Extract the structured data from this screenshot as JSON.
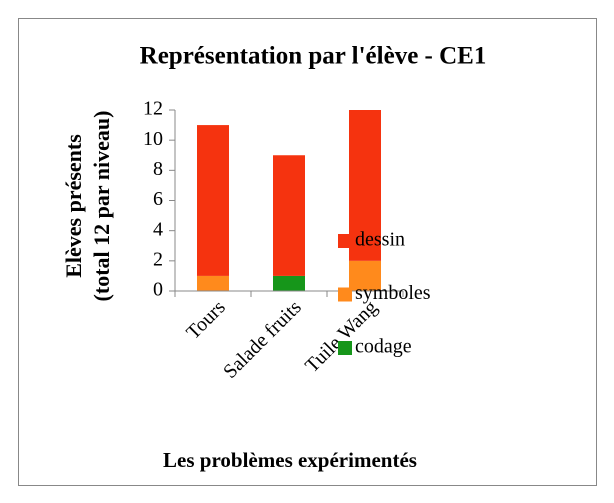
{
  "chart_data": {
    "type": "stacked_bar",
    "title": "Représentation par l'élève - CE1",
    "ylabel": [
      "Elèves présents",
      "(total 12 par niveau)"
    ],
    "xlabel": "Les problèmes expérimentés",
    "categories": [
      "Tours",
      "Salade fruits",
      "Tuile Wang"
    ],
    "series": [
      {
        "name": "dessin",
        "color": "#f5330f",
        "values": [
          10,
          8,
          10
        ]
      },
      {
        "name": "symboles",
        "color": "#ff8a1c",
        "values": [
          1,
          0,
          2
        ]
      },
      {
        "name": "codage",
        "color": "#16961a",
        "values": [
          0,
          1,
          0
        ]
      }
    ],
    "ylim": [
      0,
      12
    ],
    "yticks": [
      0,
      2,
      4,
      6,
      8,
      10,
      12
    ],
    "grid": false,
    "legend": "right"
  }
}
